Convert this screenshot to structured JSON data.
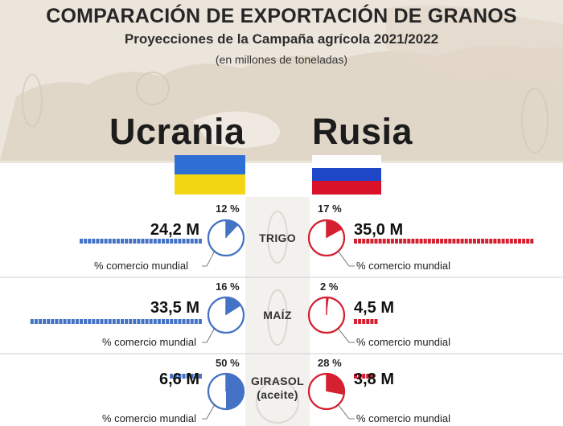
{
  "header": {
    "title": "COMPARACIÓN DE EXPORTACIÓN DE GRANOS",
    "subtitle": "Proyecciones de la Campaña agrícola 2021/2022",
    "units": "(en millones de toneladas)"
  },
  "countries": {
    "left": {
      "name": "Ucrania",
      "color": "#4472c4"
    },
    "right": {
      "name": "Rusia",
      "color": "#d42030"
    }
  },
  "colors": {
    "ukraine_flag_top": "#2e6fd6",
    "ukraine_flag_bottom": "#f2d613",
    "russia_flag_top": "#ffffff",
    "russia_flag_mid": "#1f48c8",
    "russia_flag_bottom": "#d9122a",
    "map_background": "#eae2d8"
  },
  "share_caption": "% comercio mundial",
  "chart_data": {
    "type": "bar",
    "title": "COMPARACIÓN DE EXPORTACIÓN DE GRANOS",
    "subtitle": "Proyecciones de la Campaña agrícola 2021/2022",
    "units": "(en millones de toneladas)",
    "categories": [
      "TRIGO",
      "MAÍZ",
      "GIRASOL (aceite)"
    ],
    "series": [
      {
        "name": "Ucrania",
        "values": [
          24.2,
          33.5,
          6.6
        ],
        "value_labels": [
          "24,2 M",
          "33,5 M",
          "6,6 M"
        ],
        "world_share_pct": [
          12,
          16,
          50
        ],
        "world_share_labels": [
          "12 %",
          "16 %",
          "50 %"
        ]
      },
      {
        "name": "Rusia",
        "values": [
          35.0,
          4.5,
          3.8
        ],
        "value_labels": [
          "35,0 M",
          "4,5 M",
          "3,8 M"
        ],
        "world_share_pct": [
          17,
          2,
          28
        ],
        "world_share_labels": [
          "17 %",
          "2 %",
          "28 %"
        ]
      }
    ]
  }
}
